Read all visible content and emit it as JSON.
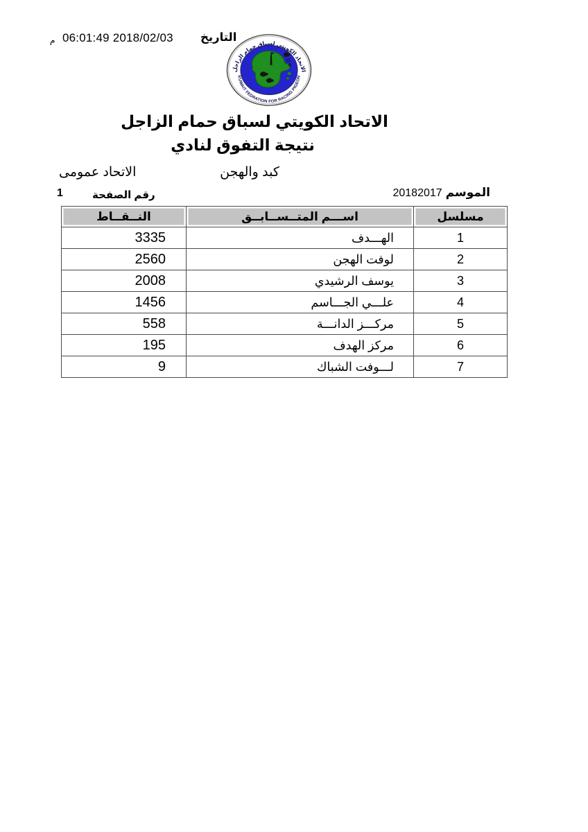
{
  "document": {
    "date": {
      "label": "التاريخ",
      "value": "06:01:49 2018/02/03",
      "meridiem": "م"
    },
    "logo": {
      "arabic_ring_text": "الاتحاد الكويتي لسباق حمام الزاجل",
      "english_ring_text": "KUWAIT FEDRATION FOR RACING PIGEON",
      "colors": {
        "ring": "#ffffff",
        "blue": "#2424cd",
        "green": "#1f8f1f",
        "outline": "#555555",
        "text": "#14145a"
      }
    },
    "title_line1": "الاتحاد الكويتي لسباق حمام الزاجل",
    "title_line2": "نتيجة التفوق لنادي",
    "club_name": "كبد والهجن",
    "federation_type": "الاتحاد عمومى",
    "season": {
      "label": "الموسم",
      "value": "20182017"
    },
    "page_number": {
      "label": "رقم الصفحة",
      "value": "1"
    }
  },
  "table": {
    "header_bg": "#c3c3c3",
    "border_color": "#4a4a4a",
    "columns": {
      "serial": "مسلسل",
      "name": "اســـم المتــســابــق",
      "points": "النــقــاط"
    },
    "rows": [
      {
        "serial": "1",
        "name": "الهـــدف",
        "points": "3335"
      },
      {
        "serial": "2",
        "name": "لوفت الهجن",
        "points": "2560"
      },
      {
        "serial": "3",
        "name": "يوسف الرشيدي",
        "points": "2008"
      },
      {
        "serial": "4",
        "name": "علـــي الجـــاسم",
        "points": "1456"
      },
      {
        "serial": "5",
        "name": "مركـــز الدانـــة",
        "points": "558"
      },
      {
        "serial": "6",
        "name": "مركز الهدف",
        "points": "195"
      },
      {
        "serial": "7",
        "name": "لـــوفت الشباك",
        "points": "9"
      }
    ]
  }
}
